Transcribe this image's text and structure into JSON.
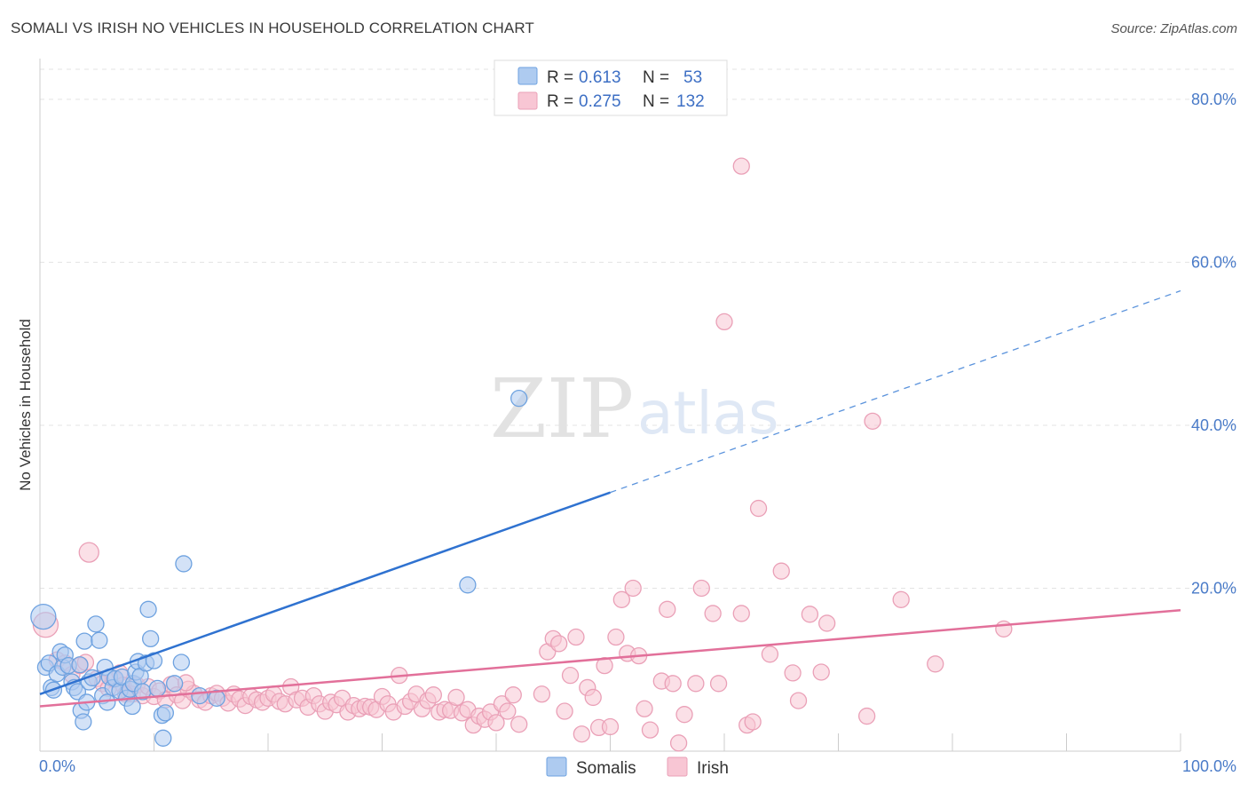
{
  "title": "SOMALI VS IRISH NO VEHICLES IN HOUSEHOLD CORRELATION CHART",
  "source": "Source: ZipAtlas.com",
  "watermark": {
    "part1": "ZIP",
    "part2": "atlas"
  },
  "chart_data": {
    "type": "scatter",
    "title": "SOMALI VS IRISH NO VEHICLES IN HOUSEHOLD CORRELATION CHART",
    "xlabel": "",
    "ylabel": "No Vehicles in Household",
    "xlim": [
      0,
      100
    ],
    "ylim": [
      0,
      85
    ],
    "x_tick_labels": [
      "0.0%",
      "100.0%"
    ],
    "y_ticks": [
      20,
      40,
      60,
      80
    ],
    "y_tick_labels": [
      "20.0%",
      "40.0%",
      "60.0%",
      "80.0%"
    ],
    "grid": true,
    "legend": {
      "placement": "top-center",
      "entries": [
        {
          "r_label": "R =",
          "r_value": "0.613",
          "n_label": "N =",
          "n_value": "53"
        },
        {
          "r_label": "R =",
          "r_value": "0.275",
          "n_label": "N =",
          "n_value": "132"
        }
      ]
    },
    "series": [
      {
        "name": "Somalis",
        "color": "#6ea2e0",
        "fill": "#aecbf0",
        "trend": {
          "x0": 0,
          "y0": 7.0,
          "x1": 100,
          "y1": 56.5,
          "solid_until": 50
        },
        "points": [
          [
            0.3,
            16.5
          ],
          [
            0.5,
            10.3
          ],
          [
            0.8,
            10.8
          ],
          [
            1.0,
            7.8
          ],
          [
            1.2,
            7.5
          ],
          [
            1.5,
            9.5
          ],
          [
            1.8,
            12.2
          ],
          [
            2.0,
            10.3
          ],
          [
            2.2,
            11.8
          ],
          [
            2.5,
            10.5
          ],
          [
            2.8,
            8.5
          ],
          [
            3.0,
            7.8
          ],
          [
            3.3,
            7.3
          ],
          [
            3.5,
            10.6
          ],
          [
            3.6,
            5.0
          ],
          [
            3.8,
            3.6
          ],
          [
            3.9,
            13.5
          ],
          [
            4.1,
            6.0
          ],
          [
            4.3,
            8.5
          ],
          [
            4.6,
            9.0
          ],
          [
            4.9,
            15.6
          ],
          [
            5.2,
            13.6
          ],
          [
            5.5,
            6.8
          ],
          [
            5.7,
            10.3
          ],
          [
            5.9,
            6.0
          ],
          [
            6.1,
            9.1
          ],
          [
            6.4,
            7.8
          ],
          [
            6.6,
            8.9
          ],
          [
            7.0,
            7.4
          ],
          [
            7.2,
            9.1
          ],
          [
            7.6,
            6.5
          ],
          [
            7.9,
            7.6
          ],
          [
            8.1,
            5.5
          ],
          [
            8.2,
            8.3
          ],
          [
            8.4,
            9.7
          ],
          [
            8.6,
            11.0
          ],
          [
            8.8,
            9.2
          ],
          [
            9.0,
            7.3
          ],
          [
            9.3,
            10.8
          ],
          [
            9.5,
            17.4
          ],
          [
            9.7,
            13.8
          ],
          [
            10.0,
            11.1
          ],
          [
            10.3,
            7.7
          ],
          [
            10.7,
            4.4
          ],
          [
            11.0,
            4.7
          ],
          [
            11.8,
            8.3
          ],
          [
            12.4,
            10.9
          ],
          [
            12.6,
            23.0
          ],
          [
            14.0,
            6.8
          ],
          [
            15.5,
            6.5
          ],
          [
            42.0,
            43.3
          ],
          [
            37.5,
            20.4
          ],
          [
            10.8,
            1.6
          ]
        ]
      },
      {
        "name": "Irish",
        "color": "#eaa0b7",
        "fill": "#f8c6d4",
        "trend": {
          "x0": 0,
          "y0": 5.5,
          "x1": 100,
          "y1": 17.3
        },
        "points": [
          [
            0.5,
            15.5
          ],
          [
            1.5,
            11.2
          ],
          [
            2.2,
            10.8
          ],
          [
            2.8,
            9.4
          ],
          [
            3.5,
            10.5
          ],
          [
            4.0,
            10.9
          ],
          [
            4.3,
            24.4
          ],
          [
            5.0,
            8.9
          ],
          [
            5.5,
            8.3
          ],
          [
            6.0,
            7.7
          ],
          [
            6.5,
            8.8
          ],
          [
            7.0,
            9.6
          ],
          [
            7.3,
            8.1
          ],
          [
            7.8,
            7.1
          ],
          [
            8.1,
            7.0
          ],
          [
            8.5,
            8.1
          ],
          [
            9.0,
            6.8
          ],
          [
            9.5,
            7.9
          ],
          [
            10.0,
            6.7
          ],
          [
            10.5,
            7.4
          ],
          [
            11.0,
            6.3
          ],
          [
            11.5,
            8.2
          ],
          [
            12.0,
            6.9
          ],
          [
            12.5,
            6.2
          ],
          [
            13.0,
            7.6
          ],
          [
            13.5,
            7.1
          ],
          [
            14.0,
            6.3
          ],
          [
            14.5,
            6.0
          ],
          [
            15.0,
            6.8
          ],
          [
            15.5,
            7.1
          ],
          [
            16.0,
            6.5
          ],
          [
            16.5,
            5.9
          ],
          [
            17.0,
            7.0
          ],
          [
            17.5,
            6.4
          ],
          [
            18.0,
            5.6
          ],
          [
            18.5,
            6.7
          ],
          [
            19.0,
            6.3
          ],
          [
            19.5,
            6.0
          ],
          [
            20.0,
            6.5
          ],
          [
            20.5,
            7.0
          ],
          [
            21.0,
            6.1
          ],
          [
            21.5,
            5.8
          ],
          [
            22.0,
            7.9
          ],
          [
            22.5,
            6.3
          ],
          [
            23.0,
            6.5
          ],
          [
            23.5,
            5.4
          ],
          [
            24.0,
            6.8
          ],
          [
            24.5,
            5.8
          ],
          [
            25.0,
            4.9
          ],
          [
            25.5,
            6.0
          ],
          [
            26.0,
            5.7
          ],
          [
            26.5,
            6.5
          ],
          [
            27.0,
            4.8
          ],
          [
            27.5,
            5.6
          ],
          [
            28.0,
            5.2
          ],
          [
            28.5,
            5.5
          ],
          [
            29.0,
            5.4
          ],
          [
            29.5,
            5.1
          ],
          [
            30.0,
            6.7
          ],
          [
            30.5,
            5.8
          ],
          [
            31.0,
            4.8
          ],
          [
            31.5,
            9.3
          ],
          [
            32.0,
            5.5
          ],
          [
            32.5,
            6.1
          ],
          [
            33.0,
            7.0
          ],
          [
            33.5,
            5.2
          ],
          [
            34.0,
            6.2
          ],
          [
            34.5,
            6.9
          ],
          [
            35.0,
            4.8
          ],
          [
            35.5,
            5.1
          ],
          [
            36.0,
            5.0
          ],
          [
            36.5,
            6.6
          ],
          [
            37.0,
            4.7
          ],
          [
            37.5,
            5.1
          ],
          [
            38.0,
            3.2
          ],
          [
            38.5,
            4.3
          ],
          [
            39.0,
            3.9
          ],
          [
            39.5,
            4.8
          ],
          [
            40.0,
            3.5
          ],
          [
            40.5,
            5.8
          ],
          [
            41.0,
            4.9
          ],
          [
            41.5,
            6.9
          ],
          [
            42.0,
            3.3
          ],
          [
            44.0,
            7.0
          ],
          [
            44.5,
            12.2
          ],
          [
            45.0,
            13.8
          ],
          [
            45.5,
            13.2
          ],
          [
            46.0,
            4.9
          ],
          [
            46.5,
            9.3
          ],
          [
            47.0,
            14.0
          ],
          [
            47.5,
            2.1
          ],
          [
            48.0,
            7.8
          ],
          [
            48.5,
            6.6
          ],
          [
            49.0,
            2.9
          ],
          [
            49.5,
            10.5
          ],
          [
            50.0,
            3.0
          ],
          [
            50.5,
            14.0
          ],
          [
            51.0,
            18.6
          ],
          [
            51.5,
            12.0
          ],
          [
            52.0,
            20.0
          ],
          [
            52.5,
            11.7
          ],
          [
            53.0,
            5.2
          ],
          [
            53.5,
            2.6
          ],
          [
            54.5,
            8.6
          ],
          [
            55.0,
            17.4
          ],
          [
            55.5,
            8.3
          ],
          [
            56.0,
            1.0
          ],
          [
            56.5,
            4.5
          ],
          [
            57.5,
            8.3
          ],
          [
            58.0,
            20.0
          ],
          [
            59.0,
            16.9
          ],
          [
            60.0,
            52.7
          ],
          [
            61.5,
            71.8
          ],
          [
            61.5,
            16.9
          ],
          [
            62.0,
            3.2
          ],
          [
            62.5,
            3.6
          ],
          [
            63.0,
            29.8
          ],
          [
            64.0,
            11.9
          ],
          [
            65.0,
            22.1
          ],
          [
            66.5,
            6.2
          ],
          [
            66.0,
            9.6
          ],
          [
            67.5,
            16.8
          ],
          [
            68.5,
            9.7
          ],
          [
            69.0,
            15.7
          ],
          [
            72.5,
            4.3
          ],
          [
            73.0,
            40.5
          ],
          [
            75.5,
            18.6
          ],
          [
            78.5,
            10.7
          ],
          [
            84.5,
            15.0
          ],
          [
            59.5,
            8.3
          ],
          [
            7.5,
            7.0
          ],
          [
            12.8,
            8.4
          ]
        ]
      }
    ]
  }
}
